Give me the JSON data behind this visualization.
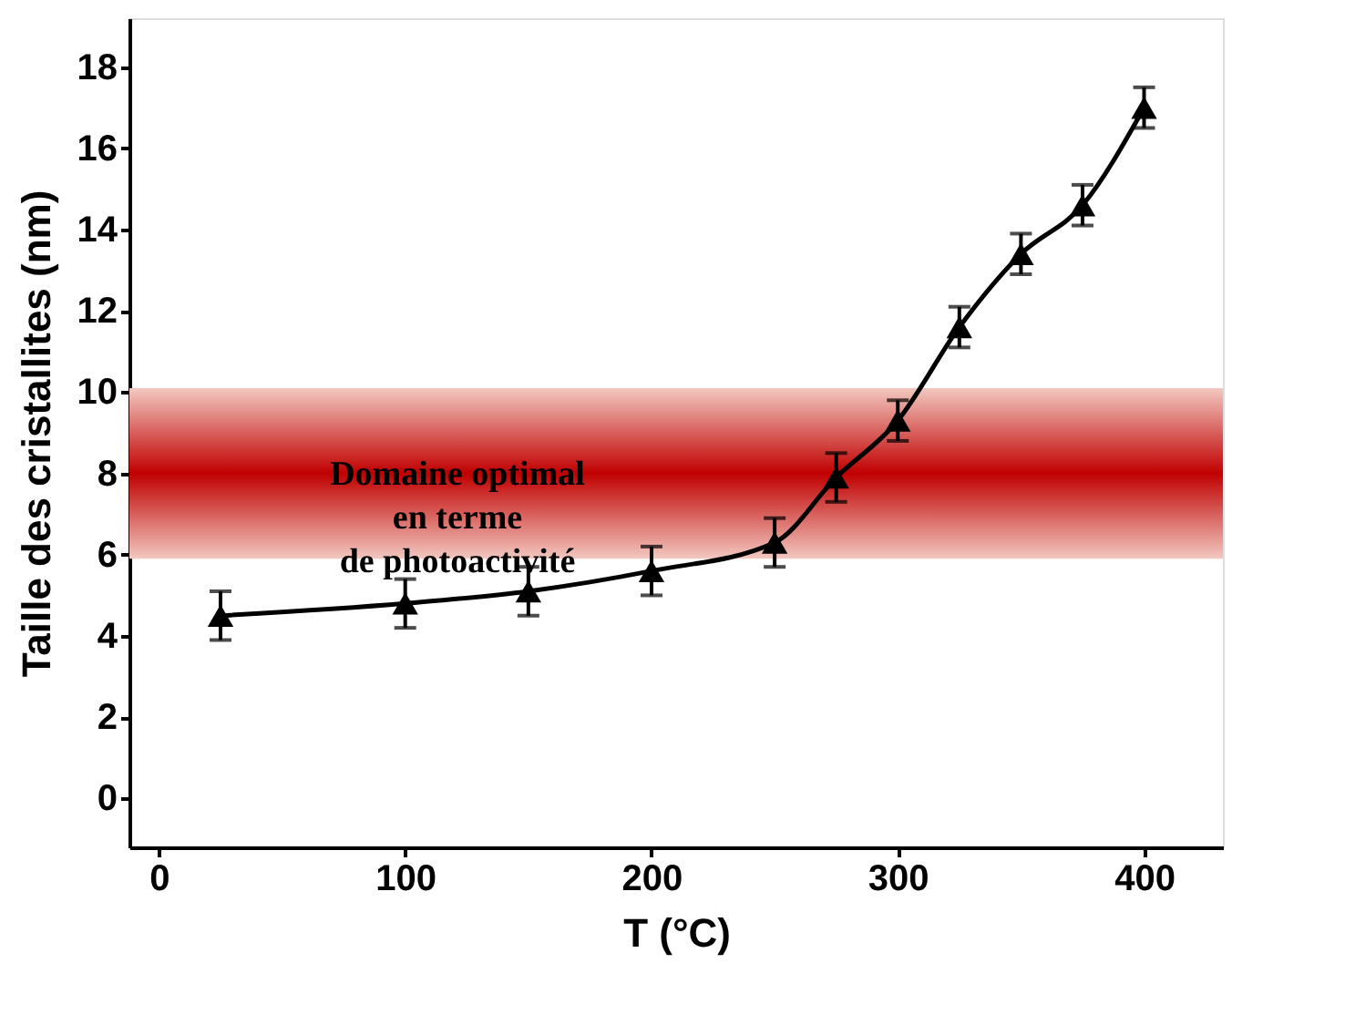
{
  "chart_data": {
    "type": "line",
    "xlabel": "T (°C)",
    "ylabel": "Taille des cristallites (nm)",
    "x": [
      25,
      100,
      150,
      200,
      250,
      275,
      300,
      325,
      350,
      375,
      400
    ],
    "series": [
      {
        "color": "#000000",
        "values": [
          4.5,
          4.8,
          5.1,
          5.6,
          6.3,
          7.9,
          9.3,
          11.6,
          13.4,
          14.6,
          17.0
        ],
        "errors": [
          0.6,
          0.6,
          0.6,
          0.6,
          0.6,
          0.6,
          0.5,
          0.5,
          0.5,
          0.5,
          0.5
        ]
      }
    ],
    "xlim": [
      -12,
      432
    ],
    "xticks": [
      0,
      100,
      200,
      300,
      400
    ],
    "ylim": [
      -1.2,
      19.2
    ],
    "yticks": [
      0,
      2,
      4,
      6,
      8,
      10,
      12,
      14,
      16,
      18
    ],
    "bands": [
      {
        "axis": "y",
        "from": 5.9,
        "to": 10.1,
        "label": "Domaine optimal\nen terme\nde photoactivité",
        "color": "#c00000"
      }
    ],
    "marker": "triangle",
    "line_style": "solid",
    "grid": false
  }
}
